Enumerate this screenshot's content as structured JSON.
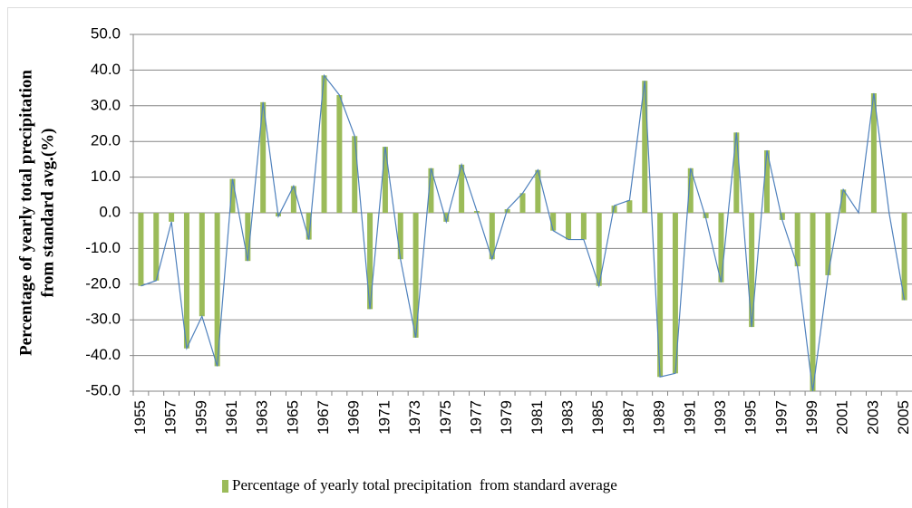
{
  "chart_data": {
    "type": "bar",
    "ylabel": [
      "Percentage of yearly total precipitation",
      "from standard avg.(%)"
    ],
    "categories": [
      "1955",
      null,
      "1957",
      null,
      "1959",
      null,
      "1961",
      null,
      "1963",
      null,
      "1965",
      null,
      "1967",
      null,
      "1969",
      null,
      "1971",
      null,
      "1973",
      null,
      "1975",
      null,
      "1977",
      null,
      "1979",
      null,
      "1981",
      null,
      "1983",
      null,
      "1985",
      null,
      "1987",
      null,
      "1989",
      null,
      "1991",
      null,
      "1993",
      null,
      "1995",
      null,
      "1997",
      null,
      "1999",
      null,
      "2001",
      null,
      "2003",
      null,
      "2005"
    ],
    "series": [
      {
        "name": "Percentage of yearly total precipitation  from standard average",
        "color": "#9bbb59",
        "line_color": "#4f81bd",
        "values": [
          -20.5,
          -19,
          -2.5,
          -38,
          -29,
          -43,
          9.5,
          -13.5,
          31,
          -1,
          7.5,
          -7.5,
          38.5,
          33,
          21.5,
          -27,
          18.5,
          -13,
          -35,
          12.5,
          -2.5,
          13.5,
          0.5,
          -13,
          1,
          5.5,
          12,
          -5,
          -7.5,
          -7.5,
          -20.5,
          2,
          3.5,
          37,
          -46,
          -45,
          12.5,
          -1.5,
          -19.5,
          22.5,
          -32,
          17.5,
          -2,
          -15,
          -50,
          -17.5,
          6.5,
          0,
          33.5,
          0,
          -24.5
        ]
      }
    ],
    "ylim": [
      -50,
      50
    ],
    "yticks": [
      {
        "value": -50,
        "label": "-50.0"
      },
      {
        "value": -40,
        "label": "-40.0"
      },
      {
        "value": -30,
        "label": "-30.0"
      },
      {
        "value": -20,
        "label": "-20.0"
      },
      {
        "value": -10,
        "label": "-10.0"
      },
      {
        "value": 0,
        "label": "0.0"
      },
      {
        "value": 10,
        "label": "10.0"
      },
      {
        "value": 20,
        "label": "20.0"
      },
      {
        "value": 30,
        "label": "30.0"
      },
      {
        "value": 40,
        "label": "40.0"
      },
      {
        "value": 50,
        "label": "50.0"
      }
    ],
    "grid": true
  }
}
